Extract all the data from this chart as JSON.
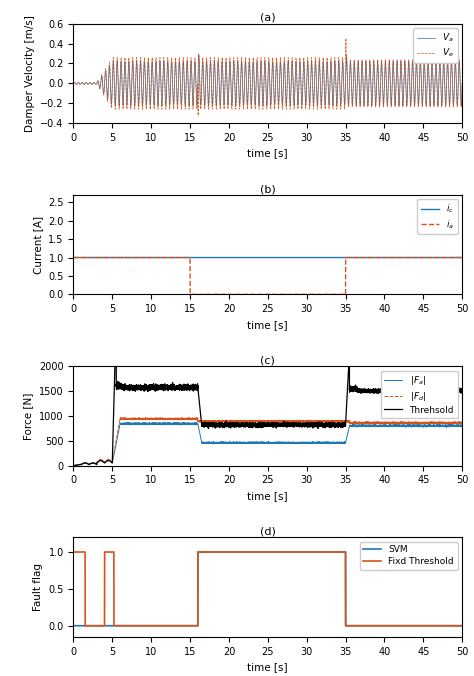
{
  "title_a": "(a)",
  "title_b": "(b)",
  "title_c": "(c)",
  "title_d": "(d)",
  "xlabel": "time [s]",
  "ylabel_a": "Damper Velocity [m/s]",
  "ylabel_b": "Current [A]",
  "ylabel_c": "Force [N]",
  "ylabel_d": "Fault flag",
  "xlim": [
    0,
    50
  ],
  "ylim_a": [
    -0.4,
    0.6
  ],
  "ylim_b": [
    0,
    2.7
  ],
  "ylim_c": [
    0,
    2000
  ],
  "ylim_d": [
    -0.15,
    1.2
  ],
  "color_blue": "#1f77b4",
  "color_orange": "#d95319",
  "color_black": "#000000",
  "yticks_a": [
    -0.4,
    -0.2,
    0.0,
    0.2,
    0.4,
    0.6
  ],
  "yticks_b": [
    0,
    0.5,
    1.0,
    1.5,
    2.0,
    2.5
  ],
  "yticks_c": [
    0,
    500,
    1000,
    1500,
    2000
  ],
  "yticks_d": [
    0,
    0.5,
    1.0
  ],
  "xticks": [
    0,
    5,
    10,
    15,
    20,
    25,
    30,
    35,
    40,
    45,
    50
  ]
}
